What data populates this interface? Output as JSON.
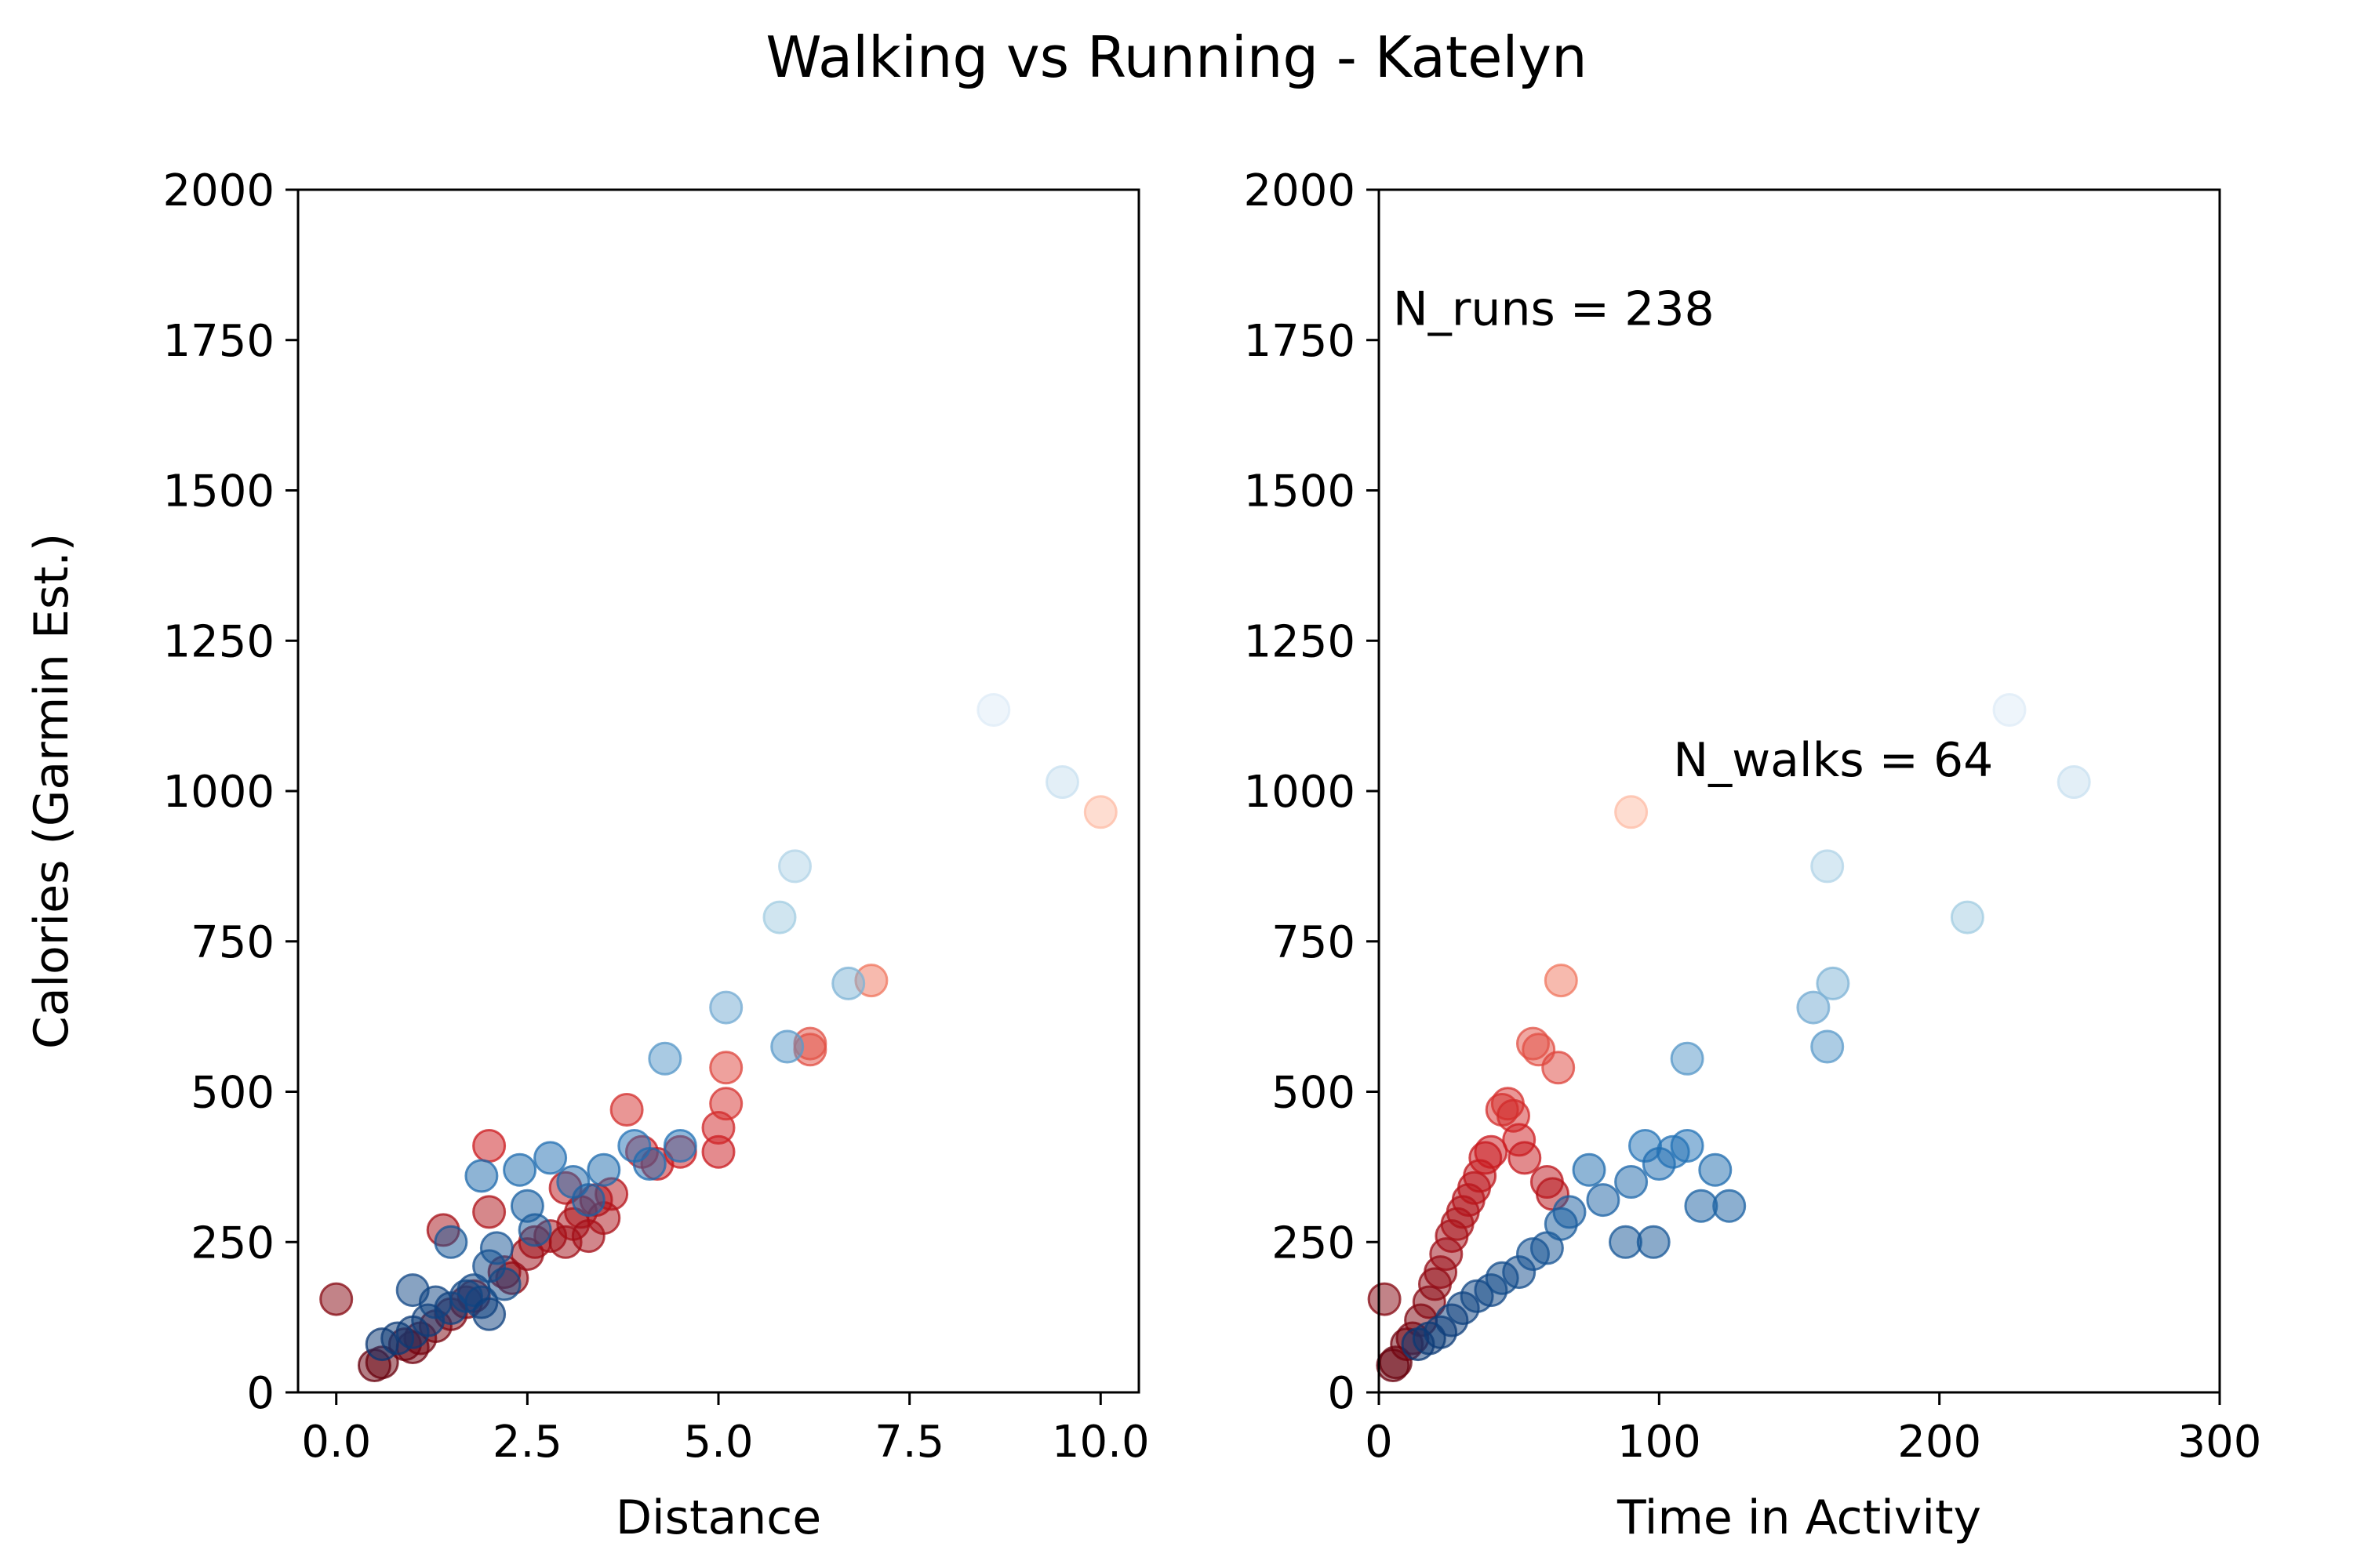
{
  "title": "Walking vs Running - Katelyn",
  "colors": {
    "runs_dark": "#67000d",
    "runs_mid": "#cb181d",
    "runs_light": "#fc9272",
    "runs_faint": "#fee0d2",
    "walks_dark": "#08306b",
    "walks_mid": "#2171b5",
    "walks_light": "#9ecae1",
    "walks_faint": "#deebf7",
    "ann_runs": "#a52a2a",
    "ann_walks": "#6495ed"
  },
  "annotations": {
    "runs": "N_runs = 238",
    "walks": "N_walks = 64"
  },
  "chart_data": [
    {
      "type": "scatter",
      "title": "",
      "xlabel": "Distance",
      "ylabel": "Calories (Garmin Est.)",
      "xlim": [
        -0.5,
        10.5
      ],
      "ylim": [
        0,
        2000
      ],
      "xticks": [
        "0.0",
        "2.5",
        "5.0",
        "7.5",
        "10.0"
      ],
      "xtick_values": [
        0,
        2.5,
        5,
        7.5,
        10
      ],
      "yticks": [
        "0",
        "250",
        "500",
        "750",
        "1000",
        "1250",
        "1500",
        "1750",
        "2000"
      ],
      "ytick_values": [
        0,
        250,
        500,
        750,
        1000,
        1250,
        1500,
        1750,
        2000
      ],
      "series": [
        {
          "group": "runs",
          "points": [
            [
              0.0,
              155
            ],
            [
              0.5,
              45
            ],
            [
              0.6,
              50
            ],
            [
              0.9,
              80
            ],
            [
              1.0,
              75
            ],
            [
              1.1,
              90
            ],
            [
              1.3,
              110
            ],
            [
              1.5,
              130
            ],
            [
              1.4,
              270
            ],
            [
              1.7,
              150
            ],
            [
              1.8,
              160
            ],
            [
              2.0,
              300
            ],
            [
              2.0,
              410
            ],
            [
              2.2,
              200
            ],
            [
              2.3,
              190
            ],
            [
              2.5,
              230
            ],
            [
              2.6,
              250
            ],
            [
              2.8,
              260
            ],
            [
              3.0,
              250
            ],
            [
              3.0,
              340
            ],
            [
              3.1,
              280
            ],
            [
              3.2,
              300
            ],
            [
              3.3,
              260
            ],
            [
              3.4,
              320
            ],
            [
              3.5,
              290
            ],
            [
              3.6,
              330
            ],
            [
              3.8,
              470
            ],
            [
              4.0,
              400
            ],
            [
              4.2,
              380
            ],
            [
              4.5,
              400
            ],
            [
              5.0,
              400
            ],
            [
              5.0,
              440
            ],
            [
              5.1,
              480
            ],
            [
              5.1,
              540
            ],
            [
              6.2,
              570
            ],
            [
              6.2,
              580
            ],
            [
              7.0,
              685
            ],
            [
              10.0,
              965
            ]
          ]
        },
        {
          "group": "walks",
          "points": [
            [
              0.6,
              80
            ],
            [
              0.8,
              90
            ],
            [
              1.0,
              100
            ],
            [
              1.0,
              170
            ],
            [
              1.2,
              120
            ],
            [
              1.3,
              150
            ],
            [
              1.5,
              140
            ],
            [
              1.5,
              250
            ],
            [
              1.7,
              160
            ],
            [
              1.8,
              170
            ],
            [
              1.9,
              150
            ],
            [
              1.9,
              360
            ],
            [
              2.0,
              130
            ],
            [
              2.0,
              210
            ],
            [
              2.1,
              240
            ],
            [
              2.2,
              180
            ],
            [
              2.4,
              370
            ],
            [
              2.5,
              310
            ],
            [
              2.6,
              270
            ],
            [
              2.8,
              390
            ],
            [
              3.1,
              350
            ],
            [
              3.3,
              320
            ],
            [
              3.5,
              370
            ],
            [
              3.9,
              410
            ],
            [
              4.1,
              380
            ],
            [
              4.3,
              555
            ],
            [
              4.5,
              410
            ],
            [
              5.1,
              640
            ],
            [
              5.8,
              790
            ],
            [
              5.9,
              575
            ],
            [
              6.0,
              875
            ],
            [
              6.7,
              680
            ],
            [
              8.6,
              1135
            ],
            [
              9.5,
              1015
            ]
          ]
        }
      ]
    },
    {
      "type": "scatter",
      "title": "",
      "xlabel": "Time in Activity",
      "ylabel": "",
      "xlim": [
        0,
        300
      ],
      "ylim": [
        0,
        2000
      ],
      "xticks": [
        "0",
        "100",
        "200",
        "300"
      ],
      "xtick_values": [
        0,
        100,
        200,
        300
      ],
      "yticks": [
        "0",
        "250",
        "500",
        "750",
        "1000",
        "1250",
        "1500",
        "1750",
        "2000"
      ],
      "ytick_values": [
        0,
        250,
        500,
        750,
        1000,
        1250,
        1500,
        1750,
        2000
      ],
      "series": [
        {
          "group": "runs",
          "points": [
            [
              2,
              155
            ],
            [
              5,
              45
            ],
            [
              6,
              50
            ],
            [
              10,
              80
            ],
            [
              12,
              90
            ],
            [
              15,
              120
            ],
            [
              18,
              150
            ],
            [
              20,
              180
            ],
            [
              22,
              200
            ],
            [
              24,
              230
            ],
            [
              26,
              260
            ],
            [
              28,
              280
            ],
            [
              30,
              300
            ],
            [
              32,
              320
            ],
            [
              34,
              340
            ],
            [
              36,
              360
            ],
            [
              38,
              390
            ],
            [
              40,
              400
            ],
            [
              44,
              470
            ],
            [
              46,
              480
            ],
            [
              48,
              460
            ],
            [
              50,
              420
            ],
            [
              52,
              390
            ],
            [
              55,
              580
            ],
            [
              57,
              570
            ],
            [
              60,
              350
            ],
            [
              62,
              330
            ],
            [
              64,
              540
            ],
            [
              65,
              685
            ],
            [
              90,
              965
            ]
          ]
        },
        {
          "group": "walks",
          "points": [
            [
              14,
              80
            ],
            [
              18,
              90
            ],
            [
              22,
              100
            ],
            [
              26,
              120
            ],
            [
              30,
              140
            ],
            [
              35,
              160
            ],
            [
              40,
              170
            ],
            [
              44,
              190
            ],
            [
              50,
              200
            ],
            [
              55,
              230
            ],
            [
              60,
              240
            ],
            [
              65,
              280
            ],
            [
              68,
              300
            ],
            [
              75,
              370
            ],
            [
              80,
              320
            ],
            [
              88,
              250
            ],
            [
              90,
              350
            ],
            [
              95,
              410
            ],
            [
              98,
              250
            ],
            [
              100,
              380
            ],
            [
              105,
              400
            ],
            [
              110,
              410
            ],
            [
              115,
              310
            ],
            [
              120,
              370
            ],
            [
              125,
              310
            ],
            [
              110,
              555
            ],
            [
              155,
              640
            ],
            [
              160,
              575
            ],
            [
              162,
              680
            ],
            [
              160,
              875
            ],
            [
              210,
              790
            ],
            [
              225,
              1135
            ],
            [
              248,
              1015
            ]
          ]
        }
      ]
    }
  ]
}
